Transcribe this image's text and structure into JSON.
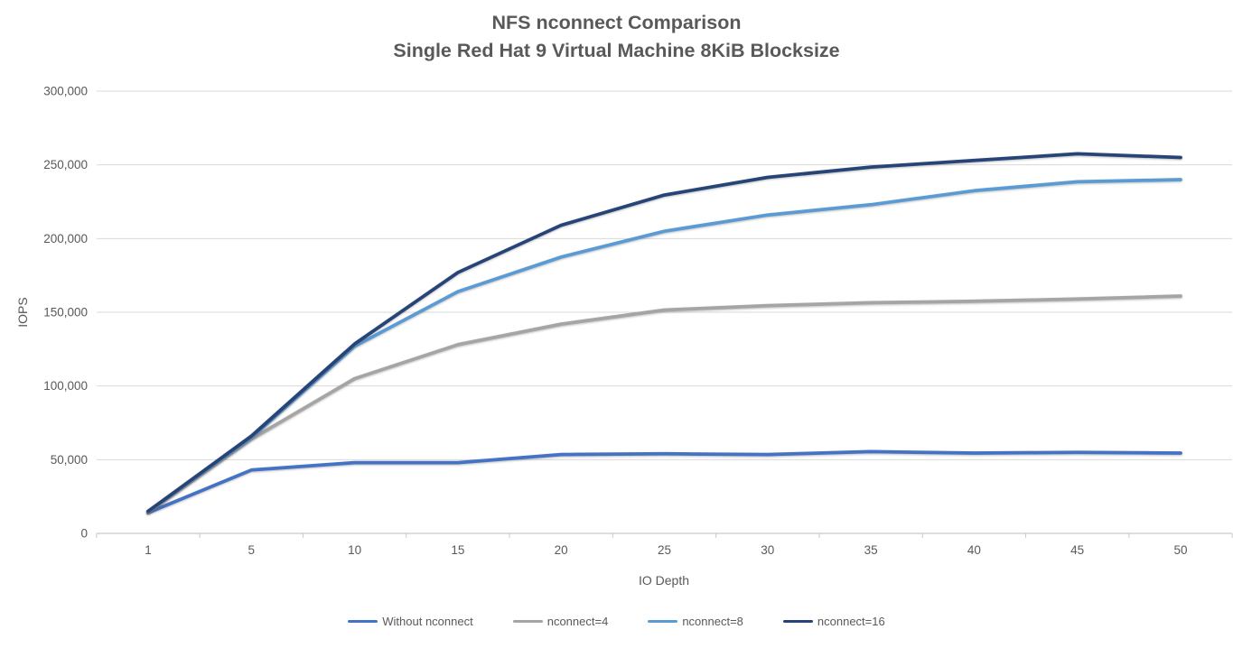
{
  "chart": {
    "title_line1": "NFS nconnect Comparison",
    "title_line2": "Single Red Hat 9 Virtual Machine 8KiB Blocksize"
  },
  "chart_data": {
    "type": "line",
    "title": "NFS nconnect Comparison",
    "subtitle": "Single Red Hat 9 Virtual Machine 8KiB Blocksize",
    "xlabel": "IO Depth",
    "ylabel": "IOPS",
    "categories": [
      1,
      5,
      10,
      15,
      20,
      25,
      30,
      35,
      40,
      45,
      50
    ],
    "series": [
      {
        "name": "Without nconnect",
        "color": "#4472C4",
        "values": [
          14000,
          43000,
          48000,
          48000,
          53500,
          54000,
          53500,
          55500,
          54500,
          55000,
          54500
        ]
      },
      {
        "name": "nconnect=4",
        "color": "#A5A5A5",
        "values": [
          14500,
          64000,
          105000,
          128000,
          142000,
          151500,
          154500,
          156500,
          157500,
          159000,
          161000
        ]
      },
      {
        "name": "nconnect=8",
        "color": "#5B9BD5",
        "values": [
          15000,
          65000,
          127000,
          164000,
          187500,
          205000,
          216000,
          223000,
          232500,
          238500,
          240000
        ]
      },
      {
        "name": "nconnect=16",
        "color": "#264478",
        "values": [
          15000,
          66000,
          128500,
          177000,
          209000,
          229500,
          241500,
          248500,
          253000,
          257500,
          255000
        ]
      }
    ],
    "ylim": [
      0,
      300000
    ],
    "ytick_step": 50000,
    "ytick_labels": [
      "0",
      "50,000",
      "100,000",
      "150,000",
      "200,000",
      "250,000",
      "300,000"
    ],
    "grid": true,
    "legend_position": "bottom",
    "colors": {
      "gridline": "#D9D9D9",
      "axis": "#C9C9C9",
      "text": "#595959"
    }
  }
}
